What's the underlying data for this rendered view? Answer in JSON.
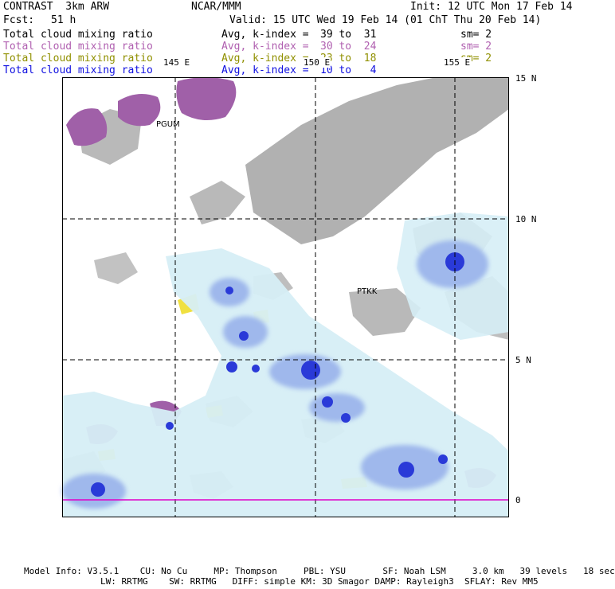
{
  "header": {
    "model": "CONTRAST  3km ARW",
    "institution": "NCAR/MMM",
    "init": "Init: 12 UTC Mon 17 Feb 14",
    "fcst_label": "Fcst:",
    "fcst_value": "51 h",
    "valid": "Valid: 15 UTC Wed 19 Feb 14 (01 ChT Thu 20 Feb 14)"
  },
  "legend": [
    {
      "field": "Total cloud mixing ratio",
      "avg": "Avg, k-index =",
      "range": "39 to  31",
      "sm": "sm= 2",
      "color": "#000000"
    },
    {
      "field": "Total cloud mixing ratio",
      "avg": "Avg, k-index =",
      "range": "30 to  24",
      "sm": "sm= 2",
      "color": "#b060b0"
    },
    {
      "field": "Total cloud mixing ratio",
      "avg": "Avg, k-index =",
      "range": "23 to  18",
      "sm": "sm= 2",
      "color": "#909000"
    },
    {
      "field": "Total cloud mixing ratio",
      "avg": "Avg, k-index =",
      "range": "10 to   4",
      "sm": "",
      "color": "#1010e0"
    }
  ],
  "axes": {
    "lon_labels": [
      "145 E",
      "150 E",
      "155 E"
    ],
    "lat_labels": [
      "15 N",
      "10 N",
      "5 N",
      "0"
    ]
  },
  "stations": [
    "PGUM",
    "PTKK"
  ],
  "colors": {
    "land": "#a8a8a8",
    "cloud_light": "#d6eef6",
    "cloud_blue": "#9fb8ec",
    "cloud_deep": "#2a3ad8",
    "purple": "#a060a8",
    "yellow": "#f0e040"
  },
  "footer": {
    "line1": "Model Info: V3.5.1    CU: No Cu     MP: Thompson     PBL: YSU       SF: Noah LSM     3.0 km   39 levels   18 sec",
    "line2": "LW: RRTMG    SW: RRTMG   DIFF: simple KM: 3D Smagor DAMP: Rayleigh3  SFLAY: Rev MM5"
  }
}
